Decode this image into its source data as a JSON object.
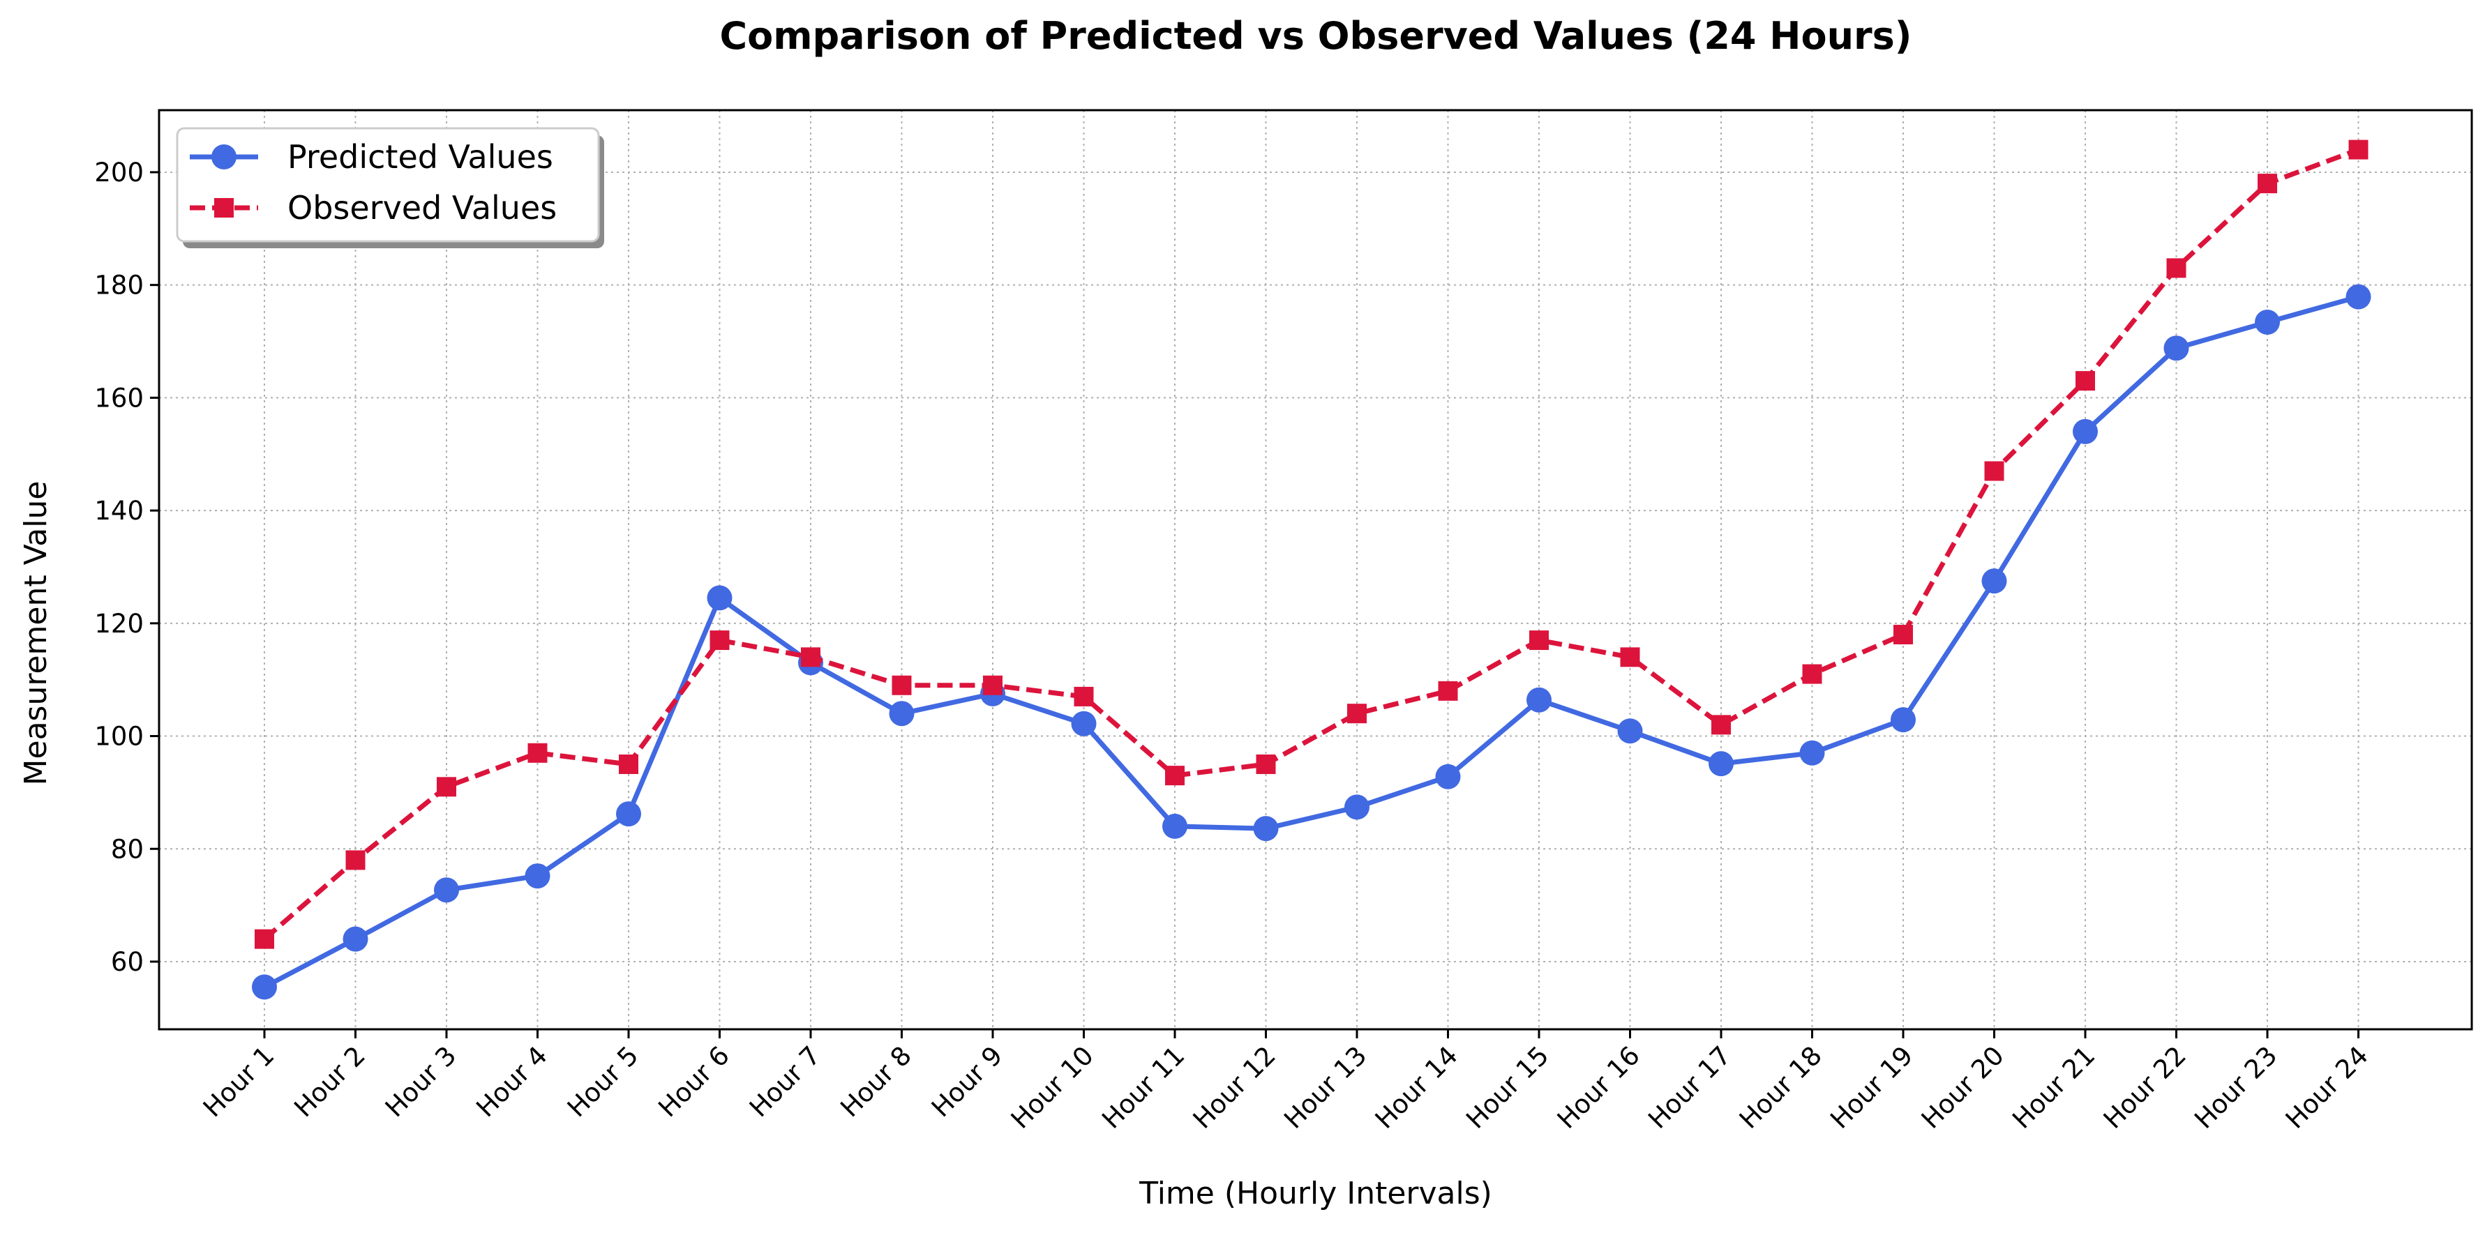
{
  "chart_data": {
    "type": "line",
    "title": "Comparison of Predicted vs Observed Values (24 Hours)",
    "xlabel": "Time (Hourly Intervals)",
    "ylabel": "Measurement Value",
    "categories": [
      "Hour 1",
      "Hour 2",
      "Hour 3",
      "Hour 4",
      "Hour 5",
      "Hour 6",
      "Hour 7",
      "Hour 8",
      "Hour 9",
      "Hour 10",
      "Hour 11",
      "Hour 12",
      "Hour 13",
      "Hour 14",
      "Hour 15",
      "Hour 16",
      "Hour 17",
      "Hour 18",
      "Hour 19",
      "Hour 20",
      "Hour 21",
      "Hour 22",
      "Hour 23",
      "Hour 24"
    ],
    "ylim": [
      48,
      211
    ],
    "yticks": [
      60,
      80,
      100,
      120,
      140,
      160,
      180,
      200
    ],
    "grid": true,
    "legend_position": "top-left",
    "series": [
      {
        "name": "Predicted Values",
        "color": "#4169e1",
        "line_style": "solid",
        "marker": "circle",
        "values": [
          55.5,
          64,
          72.7,
          75.2,
          86.2,
          124.5,
          113,
          104,
          107.5,
          102.2,
          84,
          83.6,
          87.4,
          92.8,
          106.4,
          100.9,
          95.1,
          97,
          102.9,
          127.5,
          154,
          168.8,
          173.4,
          177.9
        ]
      },
      {
        "name": "Observed Values",
        "color": "#dc143c",
        "line_style": "dashed",
        "marker": "square",
        "values": [
          64,
          78,
          91,
          97,
          95,
          117,
          114,
          109,
          109,
          107,
          93,
          95,
          104,
          108,
          117,
          114,
          102,
          111,
          118,
          147,
          163,
          183,
          198,
          204
        ]
      }
    ]
  }
}
